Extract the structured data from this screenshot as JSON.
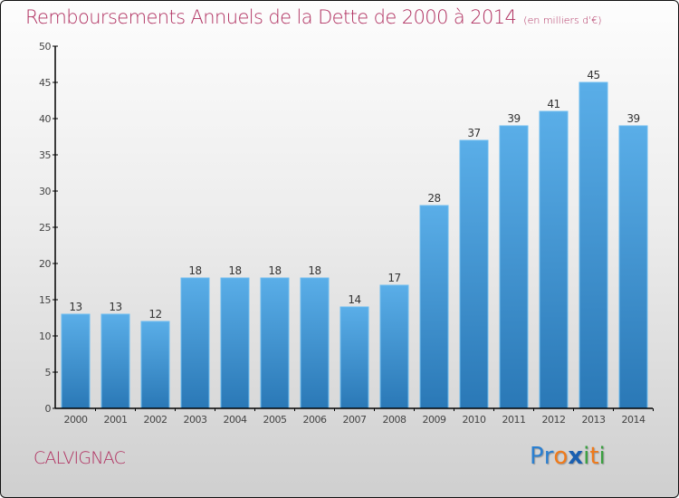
{
  "chart_data": {
    "type": "bar",
    "title": "Remboursements Annuels de la Dette de 2000 à 2014",
    "unit_note": "(en milliers d'€)",
    "xlabel": "",
    "ylabel": "",
    "ylim": [
      0,
      50
    ],
    "yticks": [
      0,
      5,
      10,
      15,
      20,
      25,
      30,
      35,
      40,
      45,
      50
    ],
    "grid": false,
    "categories": [
      "2000",
      "2001",
      "2002",
      "2003",
      "2004",
      "2005",
      "2006",
      "2007",
      "2008",
      "2009",
      "2010",
      "2011",
      "2012",
      "2013",
      "2014"
    ],
    "values": [
      13,
      13,
      12,
      18,
      18,
      18,
      18,
      14,
      17,
      28,
      37,
      39,
      41,
      45,
      39
    ],
    "bar_color_top": "#5aaee8",
    "bar_color_bottom": "#2a78b6"
  },
  "footer": {
    "commune": "CALVIGNAC",
    "logo_letters": [
      {
        "ch": "P",
        "color": "#2a7fd0"
      },
      {
        "ch": "r",
        "color": "#2a7fd0"
      },
      {
        "ch": "o",
        "color": "#f07a1a"
      },
      {
        "ch": "x",
        "color": "#1a5fb0"
      },
      {
        "ch": "i",
        "color": "#3aa040"
      },
      {
        "ch": "t",
        "color": "#f07a1a"
      },
      {
        "ch": "i",
        "color": "#3aa040"
      }
    ]
  }
}
